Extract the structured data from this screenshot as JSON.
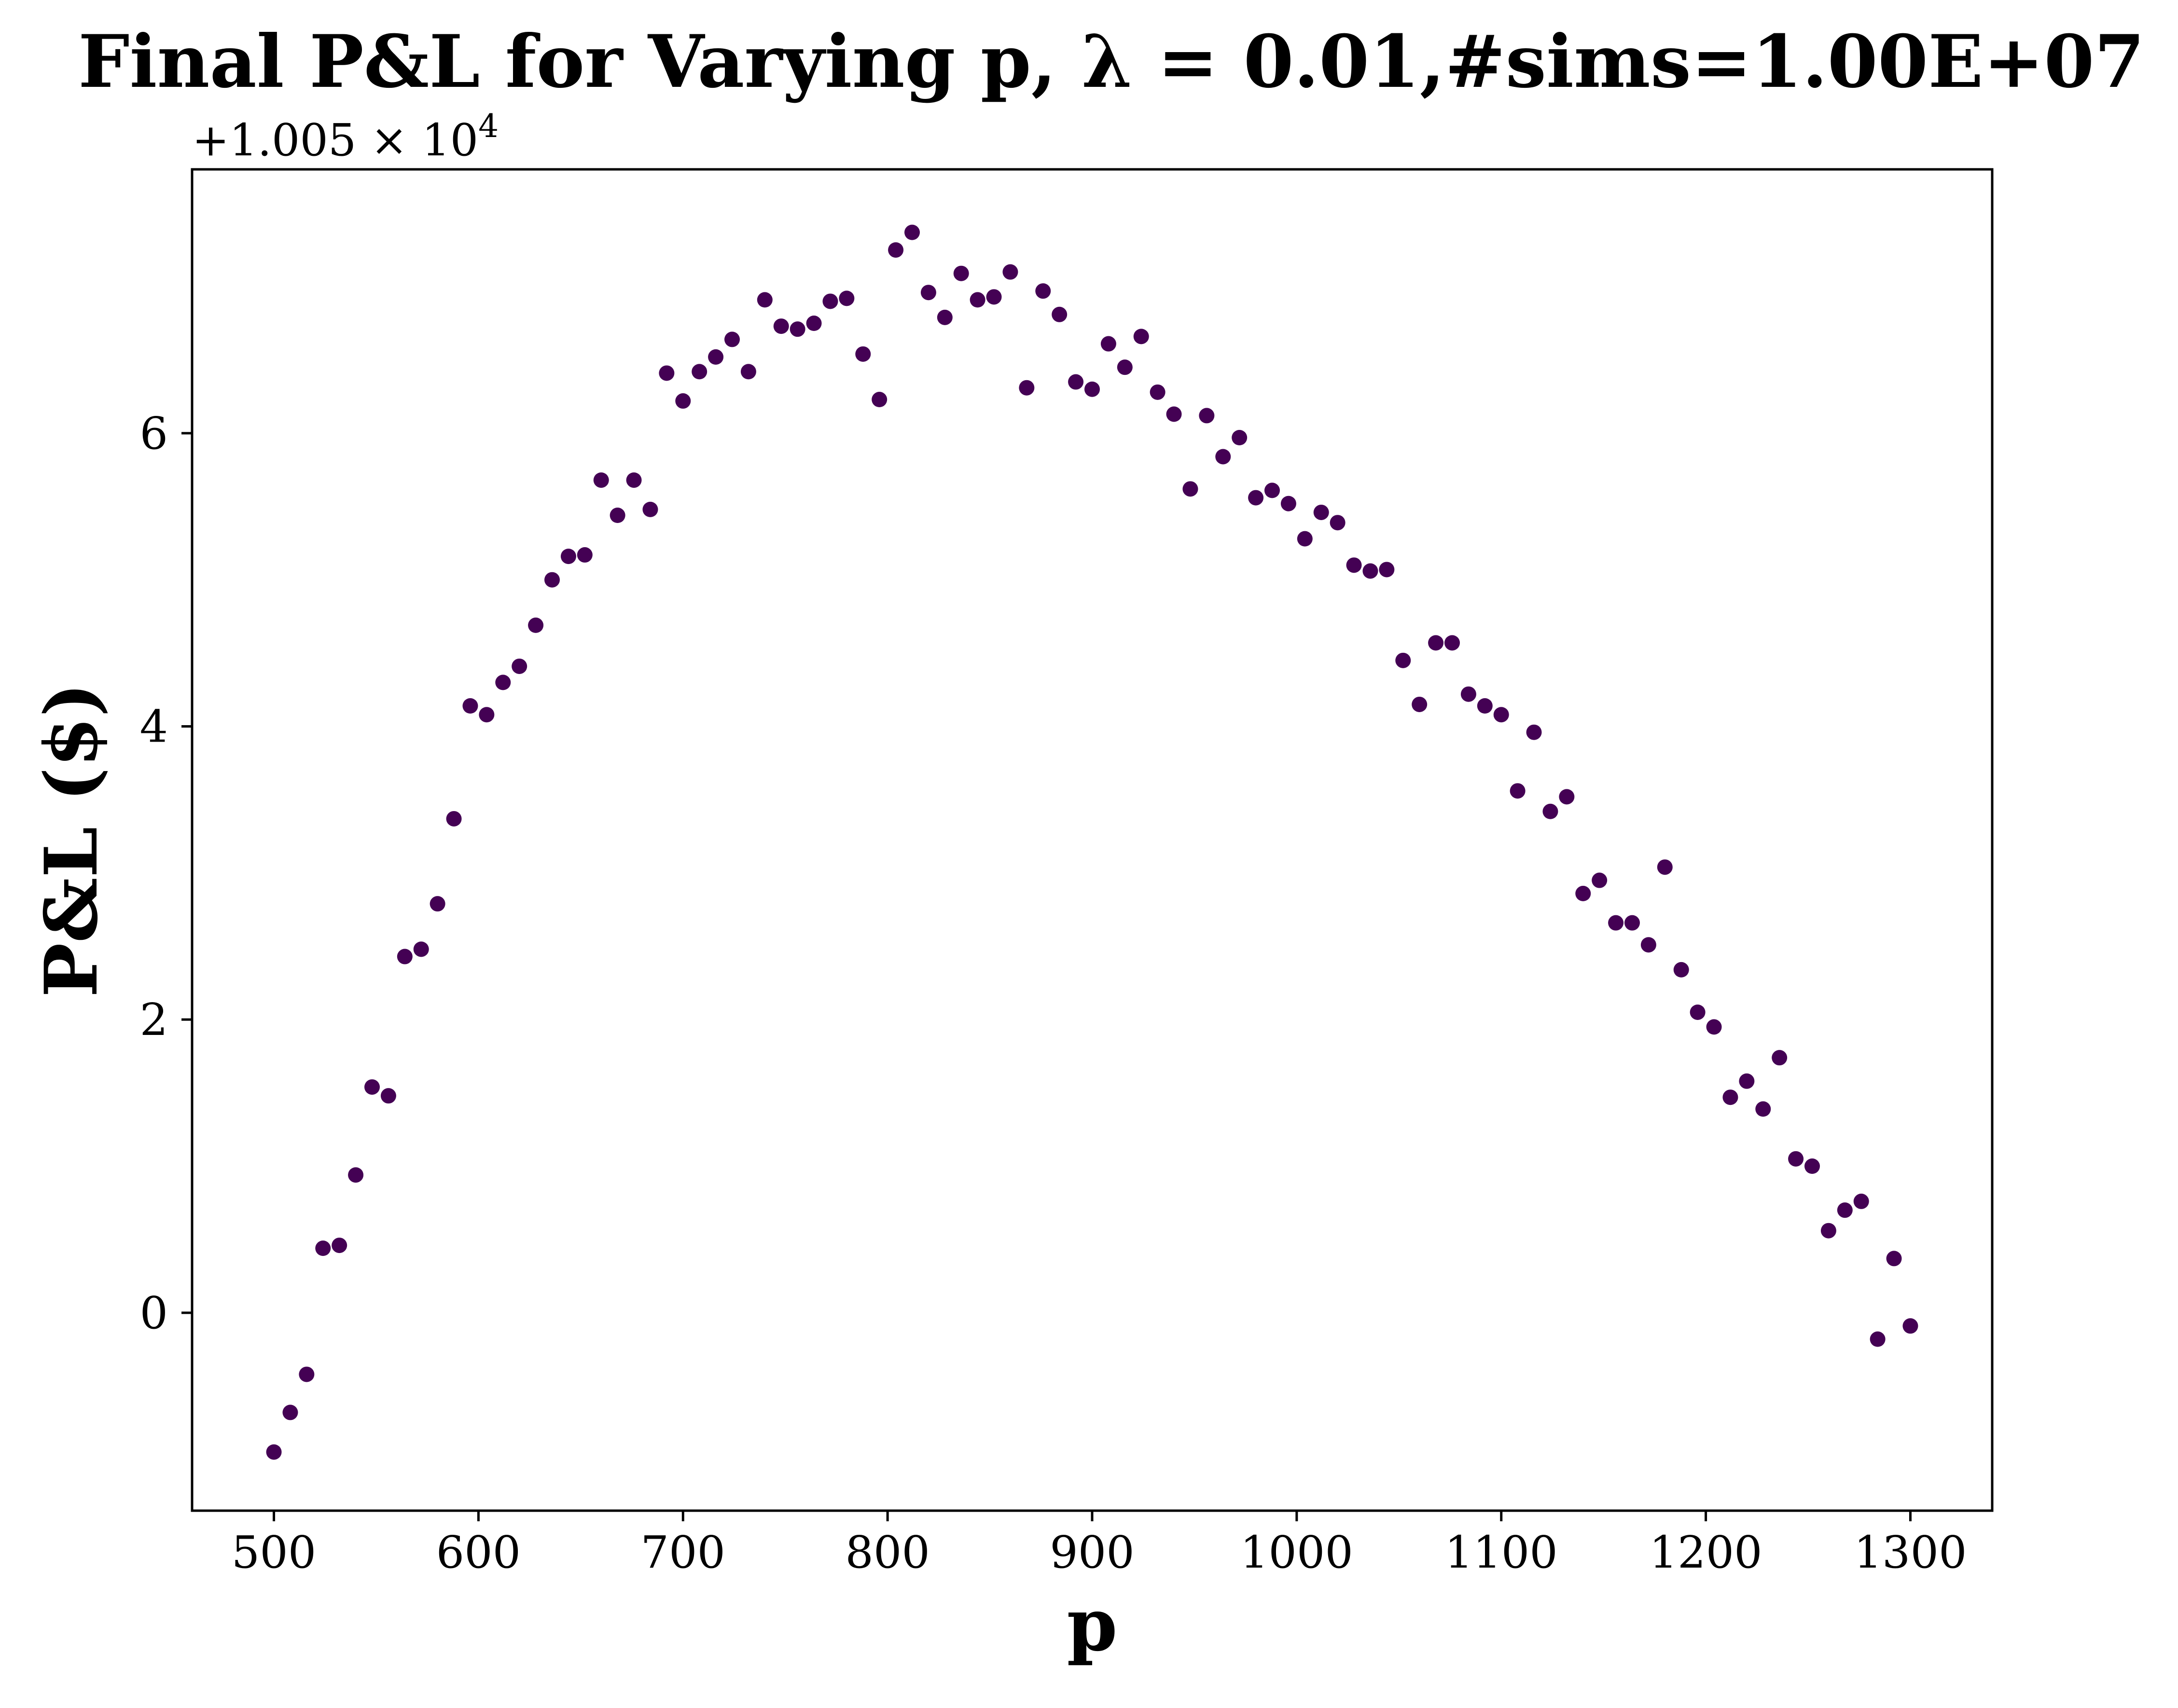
{
  "chart_data": {
    "type": "scatter",
    "title": "Final P&L for Varying p, λ = 0.01,#sims=1.00E+07",
    "xlabel": "p",
    "ylabel": "P&L ($)",
    "y_offset_label": "+1.005 × 10",
    "y_offset_exponent": "4",
    "xlim": [
      460,
      1340
    ],
    "ylim": [
      -1.35,
      7.8
    ],
    "x_ticks": [
      500,
      600,
      700,
      800,
      900,
      1000,
      1100,
      1200,
      1300
    ],
    "y_ticks": [
      0,
      2,
      4,
      6
    ],
    "marker_color": "#440154",
    "grid": false,
    "series": [
      {
        "x": [
          500,
          508,
          516,
          524,
          532,
          540,
          548,
          556,
          564,
          572,
          580,
          588,
          596,
          604,
          612,
          620,
          628,
          636,
          644,
          652,
          660,
          668,
          676,
          684,
          692,
          700,
          708,
          716,
          724,
          732,
          740,
          748,
          756,
          764,
          772,
          780,
          788,
          796,
          804,
          812,
          820,
          828,
          836,
          844,
          852,
          860,
          868,
          876,
          884,
          892,
          900,
          908,
          916,
          924,
          932,
          940,
          948,
          956,
          964,
          972,
          980,
          988,
          996,
          1004,
          1012,
          1020,
          1028,
          1036,
          1044,
          1052,
          1060,
          1068,
          1076,
          1084,
          1092,
          1100,
          1108,
          1116,
          1124,
          1132,
          1140,
          1148,
          1156,
          1164,
          1172,
          1180,
          1188,
          1196,
          1204,
          1212,
          1220,
          1228,
          1236,
          1244,
          1252,
          1260,
          1268,
          1276,
          1284,
          1292,
          1300
        ],
        "y": [
          -0.95,
          -0.68,
          -0.42,
          0.44,
          0.46,
          0.94,
          1.54,
          1.48,
          2.43,
          2.48,
          2.79,
          3.37,
          4.14,
          4.08,
          4.3,
          4.41,
          4.69,
          5.0,
          5.16,
          5.17,
          5.68,
          5.44,
          5.68,
          5.48,
          6.41,
          6.22,
          6.42,
          6.52,
          6.64,
          6.42,
          6.91,
          6.73,
          6.71,
          6.75,
          6.9,
          6.92,
          6.54,
          6.23,
          7.25,
          7.37,
          6.96,
          6.79,
          7.09,
          6.91,
          6.93,
          7.1,
          6.31,
          6.97,
          6.81,
          6.35,
          6.3,
          6.61,
          6.45,
          6.66,
          6.28,
          6.13,
          5.62,
          6.12,
          5.84,
          5.97,
          5.56,
          5.61,
          5.52,
          5.28,
          5.46,
          5.39,
          5.1,
          5.06,
          5.07,
          4.45,
          4.15,
          4.57,
          4.57,
          4.22,
          4.14,
          4.08,
          3.56,
          3.96,
          3.42,
          3.52,
          2.86,
          2.95,
          2.66,
          2.66,
          2.51,
          3.04,
          2.34,
          2.05,
          1.95,
          1.47,
          1.58,
          1.39,
          1.74,
          1.05,
          1.0,
          0.56,
          0.7,
          0.76,
          -0.18,
          0.37,
          -0.09
        ]
      }
    ]
  }
}
